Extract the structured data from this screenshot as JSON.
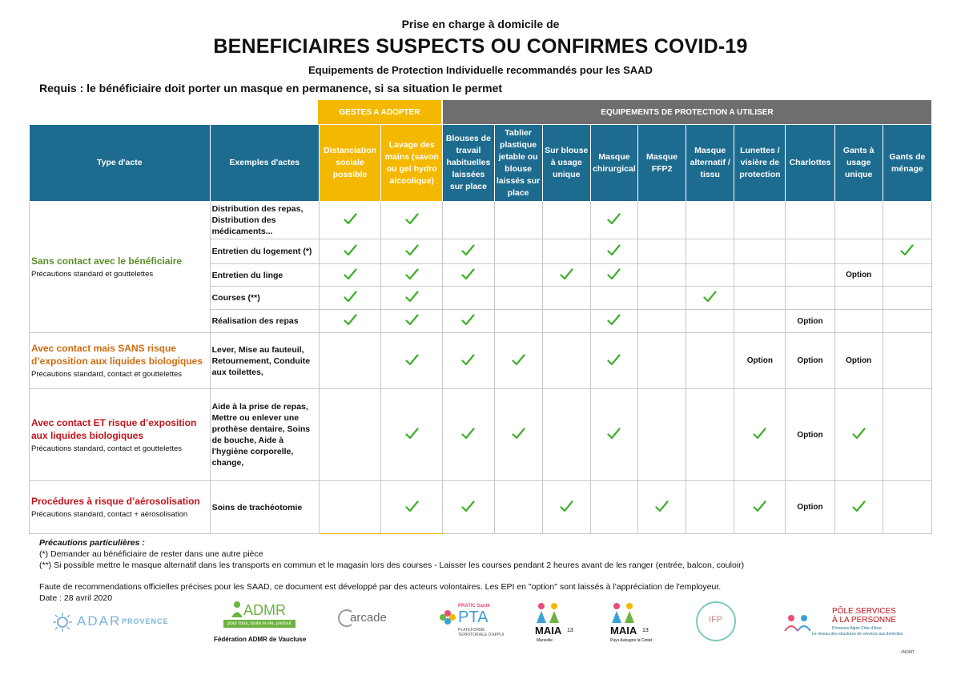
{
  "header": {
    "supertitle": "Prise en charge à domicile de",
    "title": "BENEFICIAIRES SUSPECTS OU CONFIRMES COVID-19",
    "subtitle": "Equipements de Protection Individuelle recommandés pour les SAAD",
    "requis": "Requis : le bénéficiaire doit porter un masque en permanence, si sa situation le permet"
  },
  "banner": {
    "gestes": "GESTES A ADOPTER",
    "epi": "EQUIPEMENTS DE PROTECTION A UTILISER"
  },
  "columns": {
    "type_acte": "Type d'acte",
    "exemples": "Exemples d'actes",
    "c1": "Distanciation sociale possible",
    "c2": "Lavage des mains (savon ou gel hydro alcoolique)",
    "c3": "Blouses de travail habituelles laissées sur place",
    "c4": "Tablier plastique jetable ou blouse laissés sur place",
    "c5": "Sur blouse à usage unique",
    "c6": "Masque chirurgical",
    "c7": "Masque FFP2",
    "c8": "Masque alternatif / tissu",
    "c9": "Lunettes / visière de protection",
    "c10": "Charlottes",
    "c11": "Gants à usage unique",
    "c12": "Gants de ménage"
  },
  "categories": [
    {
      "label": "Sans contact avec le bénéficiaire",
      "sub": "Précautions standard et gouttelettes",
      "color": "#5b8e2a"
    },
    {
      "label": "Avec contact mais SANS risque d’exposition aux liquides biologiques",
      "sub": "Précautions standard, contact et gouttelettes",
      "color": "#d06b10"
    },
    {
      "label": "Avec contact ET risque d’exposition aux liquides biologiques",
      "sub": "Précautions standard, contact et gouttelettes",
      "color": "#c0141b"
    },
    {
      "label": "Procédures à risque d’aérosolisation",
      "sub": "Précautions standard, contact + aérosolisation",
      "color": "#c0141b"
    }
  ],
  "rows": [
    {
      "ex": "Distribution des repas, Distribution des médicaments...",
      "cells": [
        "check",
        "check",
        "",
        "",
        "",
        "check",
        "",
        "",
        "",
        "",
        "",
        ""
      ]
    },
    {
      "ex": "Entretien du logement (*)",
      "cells": [
        "check",
        "check",
        "check",
        "",
        "",
        "check",
        "",
        "",
        "",
        "",
        "",
        "check"
      ]
    },
    {
      "ex": "Entretien du linge",
      "cells": [
        "check",
        "check",
        "check",
        "",
        "check",
        "check",
        "",
        "",
        "",
        "",
        "Option",
        ""
      ]
    },
    {
      "ex": "Courses (**)",
      "cells": [
        "check",
        "check",
        "",
        "",
        "",
        "",
        "",
        "check",
        "",
        "",
        "",
        ""
      ]
    },
    {
      "ex": "Réalisation des repas",
      "cells": [
        "check",
        "check",
        "check",
        "",
        "",
        "check",
        "",
        "",
        "",
        "Option",
        "",
        ""
      ]
    },
    {
      "ex": "Lever, Mise au fauteuil, Retournement, Conduite aux toilettes,",
      "cells": [
        "",
        "check",
        "check",
        "check",
        "",
        "check",
        "",
        "",
        "Option",
        "Option",
        "Option",
        ""
      ]
    },
    {
      "ex": "Aide à la prise de repas, Mettre ou enlever une prothèse dentaire, Soins de bouche, Aide à l'hygiène corporelle, change,",
      "cells": [
        "",
        "check",
        "check",
        "check",
        "",
        "check",
        "",
        "",
        "check",
        "Option",
        "check",
        ""
      ]
    },
    {
      "ex": "Soins de trachéotomie",
      "cells": [
        "",
        "check",
        "check",
        "",
        "check",
        "",
        "check",
        "",
        "check",
        "Option",
        "check",
        ""
      ]
    }
  ],
  "notes": {
    "title": "Précautions particulières :",
    "n1": "(*) Demander au bénéficiaire de rester dans une autre pièce",
    "n2": "(**) Si possible mettre le masque alternatif dans les transports en commun et le magasin lors des courses - Laisser les courses pendant 2 heures avant de les ranger (entrée, balcon, couloir)"
  },
  "footer": {
    "disclaimer": "Faute de recommendations officielles précises pour les SAAD, ce document est développé par des acteurs volontaires. Les EPI en \"option\" sont laissés à l'appréciation de l'employeur.",
    "date": "Date : 28 avril 2020"
  },
  "logos": {
    "adar": "ADAR",
    "adar_region": "PROVENCE",
    "admr": "ADMR",
    "admr_tag": "pour tous, toute la vie, partout",
    "admr_sub": "Fédération ADMR de Vaucluse",
    "arcade": "arcade",
    "pta_top": "PRATIC Santé",
    "pta": "PTA",
    "pta_sub": "PLATEFORME TERRITORIALE D'APPUI",
    "maia1": "MAIA",
    "maia1_num": "13",
    "maia1_sub": "Marseille",
    "maia2": "MAIA",
    "maia2_num": "13",
    "maia2_sub": "Pays Aubagne la Ciotat",
    "ifp": "IFP",
    "pole1": "PÔLE SERVICES",
    "pole2": "À LA PERSONNE",
    "pole_sub1": "Provence Alpes Côte d'Azur",
    "pole_sub2": "Le réseau des structures de services aux domiciles",
    "tag": "#NDMT"
  },
  "colors": {
    "blue": "#1d6b8f",
    "yellow": "#f5b800",
    "gray": "#6e6e6e",
    "check": "#3fae29"
  }
}
